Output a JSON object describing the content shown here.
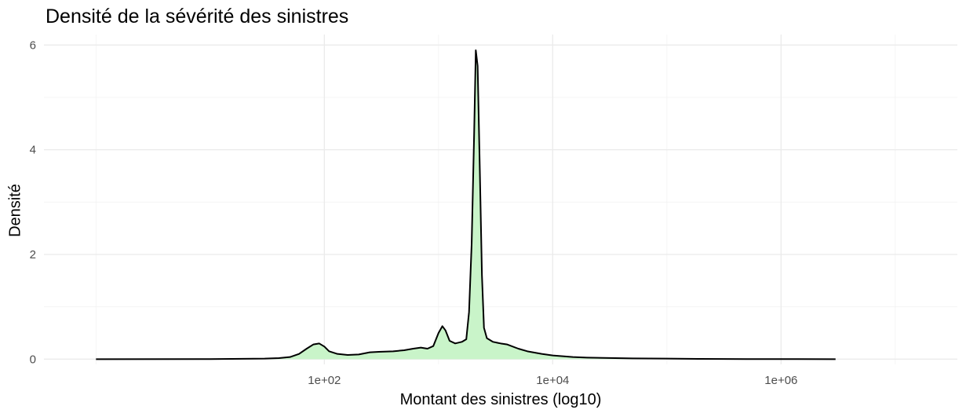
{
  "chart_data": {
    "type": "area",
    "title": "Densité de la sévérité des sinistres",
    "xlabel": "Montant des sinistres (log10)",
    "ylabel": "Densité",
    "x_scale": "log10",
    "x_ticks": [
      {
        "value": 100,
        "label": "1e+02"
      },
      {
        "value": 10000,
        "label": "1e+04"
      },
      {
        "value": 1000000,
        "label": "1e+06"
      }
    ],
    "y_ticks": [
      {
        "value": 0,
        "label": "0"
      },
      {
        "value": 2,
        "label": "2"
      },
      {
        "value": 4,
        "label": "4"
      },
      {
        "value": 6,
        "label": "6"
      }
    ],
    "xlim": [
      0.35,
      35000000
    ],
    "ylim": [
      -0.1,
      6.2
    ],
    "grid": true,
    "legend": "none",
    "fill_color": "#c9f4c9",
    "line_color": "#000000",
    "series": [
      {
        "points": [
          [
            1,
            0
          ],
          [
            10,
            0.002
          ],
          [
            30,
            0.01
          ],
          [
            40,
            0.02
          ],
          [
            50,
            0.04
          ],
          [
            60,
            0.1
          ],
          [
            70,
            0.2
          ],
          [
            80,
            0.28
          ],
          [
            90,
            0.3
          ],
          [
            100,
            0.24
          ],
          [
            110,
            0.15
          ],
          [
            130,
            0.1
          ],
          [
            160,
            0.08
          ],
          [
            200,
            0.09
          ],
          [
            250,
            0.13
          ],
          [
            300,
            0.14
          ],
          [
            400,
            0.15
          ],
          [
            500,
            0.17
          ],
          [
            600,
            0.2
          ],
          [
            700,
            0.22
          ],
          [
            800,
            0.2
          ],
          [
            900,
            0.25
          ],
          [
            1000,
            0.5
          ],
          [
            1080,
            0.63
          ],
          [
            1150,
            0.55
          ],
          [
            1250,
            0.35
          ],
          [
            1400,
            0.3
          ],
          [
            1600,
            0.33
          ],
          [
            1750,
            0.38
          ],
          [
            1850,
            0.9
          ],
          [
            1950,
            2.2
          ],
          [
            2050,
            4.3
          ],
          [
            2120,
            5.9
          ],
          [
            2200,
            5.6
          ],
          [
            2300,
            3.6
          ],
          [
            2400,
            1.6
          ],
          [
            2500,
            0.6
          ],
          [
            2650,
            0.4
          ],
          [
            3000,
            0.33
          ],
          [
            3500,
            0.3
          ],
          [
            4000,
            0.28
          ],
          [
            5000,
            0.2
          ],
          [
            6000,
            0.15
          ],
          [
            8000,
            0.1
          ],
          [
            10000,
            0.07
          ],
          [
            15000,
            0.04
          ],
          [
            20000,
            0.03
          ],
          [
            50000,
            0.015
          ],
          [
            100000,
            0.01
          ],
          [
            200000,
            0.005
          ],
          [
            500000,
            0.002
          ],
          [
            1000000,
            0.001
          ],
          [
            3000000,
            0
          ]
        ]
      }
    ]
  }
}
